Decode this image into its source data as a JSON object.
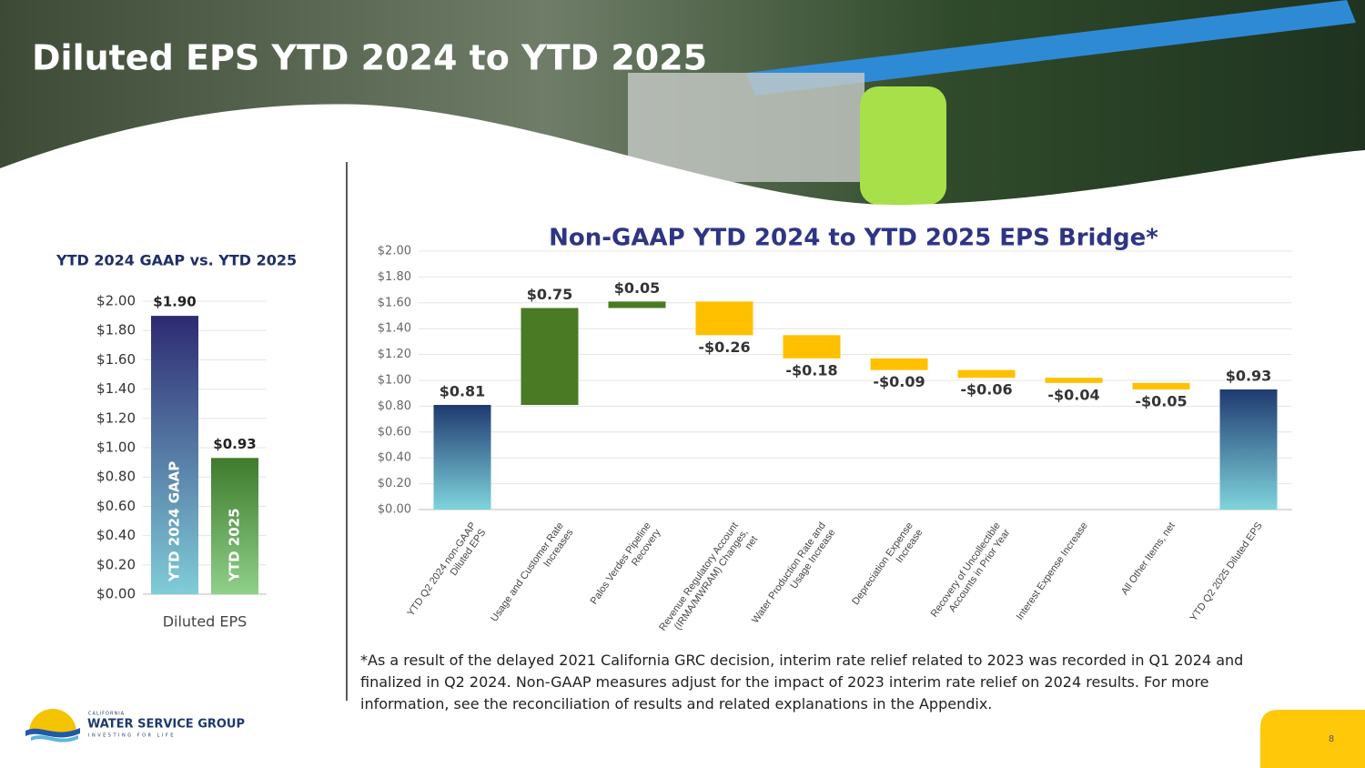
{
  "slide": {
    "title": "Diluted EPS YTD 2024 to YTD 2025",
    "footnote": "*As a result of the delayed 2021 California GRC decision, interim rate relief related to 2023 was recorded in Q1 2024 and finalized in Q2 2024. Non-GAAP measures adjust for the impact of 2023 interim rate relief on 2024 results.  For more information, see the reconciliation of results and related explanations in the Appendix.",
    "page_number": "8",
    "logo": {
      "top": "CALIFORNIA",
      "name": "WATER SERVICE GROUP",
      "tagline": "INVESTING FOR LIFE"
    }
  },
  "chart_data": [
    {
      "type": "bar",
      "title": "YTD 2024 GAAP vs. YTD 2025",
      "categories": [
        "Diluted EPS"
      ],
      "series": [
        {
          "name": "YTD 2024 GAAP",
          "color": [
            "#2d2a72",
            "#80cdd8"
          ],
          "values": [
            1.9
          ],
          "value_labels": [
            "$1.90"
          ]
        },
        {
          "name": "YTD 2025",
          "color": [
            "#3e7b2c",
            "#8fd08a"
          ],
          "values": [
            0.93
          ],
          "value_labels": [
            "$0.93"
          ]
        }
      ],
      "ylim": [
        0,
        2
      ],
      "yticks": [
        {
          "value": 0,
          "label": "$0.00"
        },
        {
          "value": 0.2,
          "label": "$0.20"
        },
        {
          "value": 0.4,
          "label": "$0.40"
        },
        {
          "value": 0.6,
          "label": "$0.60"
        },
        {
          "value": 0.8,
          "label": "$0.80"
        },
        {
          "value": 1.0,
          "label": "$1.00"
        },
        {
          "value": 1.2,
          "label": "$1.20"
        },
        {
          "value": 1.4,
          "label": "$1.40"
        },
        {
          "value": 1.6,
          "label": "$1.60"
        },
        {
          "value": 1.8,
          "label": "$1.80"
        },
        {
          "value": 2.0,
          "label": "$2.00"
        }
      ],
      "grid": true
    },
    {
      "type": "waterfall",
      "title": "Non-GAAP YTD 2024 to YTD 2025 EPS Bridge*",
      "categories": [
        "YTD Q2 2024 non-GAAP Diluted EPS",
        "Usage and Customer Rate Increases",
        "Palos Verdes Pipeline Recovery",
        "Revenue Regulatory Account (IRMA/MWRAM) Changes, net",
        "Water Production Rate and Usage Increase",
        "Depreciation Expense Increase",
        "Recovery of Uncollectible Accounts in Prior Year",
        "Interest Expense Increase",
        "All Other Items, net",
        "YTD Q2 2025 Diluted EPS"
      ],
      "values": [
        0.81,
        0.75,
        0.05,
        -0.26,
        -0.18,
        -0.09,
        -0.06,
        -0.04,
        -0.05,
        0.93
      ],
      "value_labels": [
        "$0.81",
        "$0.75",
        "$0.05",
        "-$0.26",
        "-$0.18",
        "-$0.09",
        "-$0.06",
        "-$0.04",
        "-$0.05",
        "$0.93"
      ],
      "measure": [
        "absolute",
        "relative",
        "relative",
        "relative",
        "relative",
        "relative",
        "relative",
        "relative",
        "relative",
        "absolute"
      ],
      "colors": {
        "total": [
          "#1f3a70",
          "#7fd4dc"
        ],
        "increase": "#4a7a23",
        "decrease": "#ffc000"
      },
      "ylim": [
        0,
        2
      ],
      "yticks": [
        {
          "value": 0,
          "label": "$0.00"
        },
        {
          "value": 0.2,
          "label": "$0.20"
        },
        {
          "value": 0.4,
          "label": "$0.40"
        },
        {
          "value": 0.6,
          "label": "$0.60"
        },
        {
          "value": 0.8,
          "label": "$0.80"
        },
        {
          "value": 1.0,
          "label": "$1.00"
        },
        {
          "value": 1.2,
          "label": "$1.20"
        },
        {
          "value": 1.4,
          "label": "$1.40"
        },
        {
          "value": 1.6,
          "label": "$1.60"
        },
        {
          "value": 1.8,
          "label": "$1.80"
        },
        {
          "value": 2.0,
          "label": "$2.00"
        }
      ],
      "grid": true
    }
  ]
}
